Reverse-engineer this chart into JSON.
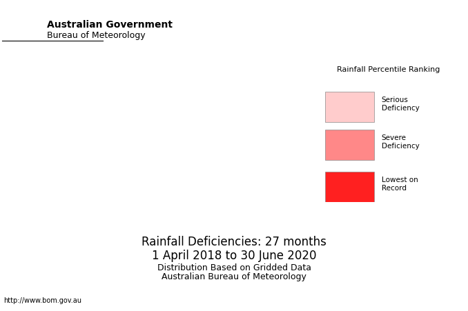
{
  "title_line1": "Rainfall Deficiencies: 27 months",
  "title_line2": "1 April 2018 to 30 June 2020",
  "subtitle_line1": "Distribution Based on Gridded Data",
  "subtitle_line2": "Australian Bureau of Meteorology",
  "url_text": "http://www.bom.gov.au",
  "gov_line1": "Australian Government",
  "gov_line2": "Bureau of Meteorology",
  "legend_title": "Rainfall Percentile Ranking",
  "legend_items": [
    {
      "label": "Serious\nDeficiency",
      "color": "#FFCCCC"
    },
    {
      "label": "Severe\nDeficiency",
      "color": "#FF8888"
    },
    {
      "label": "Lowest on\nRecord",
      "color": "#FF0000"
    }
  ],
  "background_color": "#FFFFFF",
  "map_background": "#FFFFFF",
  "border_color": "#000000"
}
